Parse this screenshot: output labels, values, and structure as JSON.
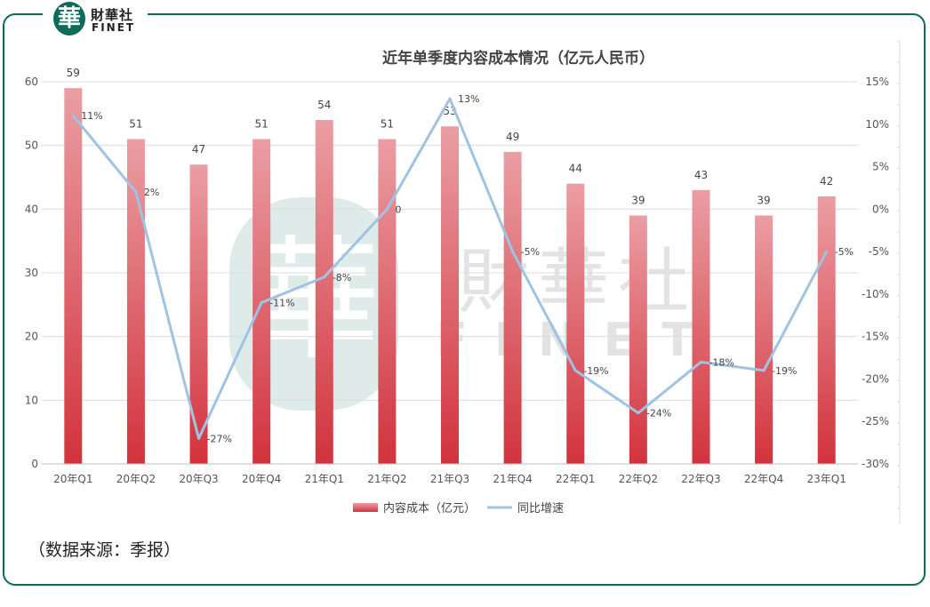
{
  "logo": {
    "mark": "華",
    "cn": "財華社",
    "en": "FINET"
  },
  "watermark": {
    "mark": "華",
    "cn": "財華社",
    "en": "FINET"
  },
  "source": "（数据来源：季报）",
  "colors": {
    "bar_top": "#ea9ea3",
    "bar_bottom": "#d2333d",
    "line": "#9ec3e3",
    "frame": "#0d6b5a"
  },
  "chart_data": {
    "type": "bar",
    "title": "近年单季度内容成本情况（亿元人民币）",
    "categories": [
      "20年Q1",
      "20年Q2",
      "20年Q3",
      "20年Q4",
      "21年Q1",
      "21年Q2",
      "21年Q3",
      "21年Q4",
      "22年Q1",
      "22年Q2",
      "22年Q3",
      "22年Q4",
      "23年Q1"
    ],
    "series": [
      {
        "name": "内容成本（亿元）",
        "type": "bar",
        "axis": "left",
        "values": [
          59,
          51,
          47,
          51,
          54,
          51,
          53,
          49,
          44,
          39,
          43,
          39,
          42
        ]
      },
      {
        "name": "同比增速",
        "type": "line",
        "axis": "right",
        "values": [
          11,
          2,
          -27,
          -11,
          -8,
          0,
          13,
          -5,
          -19,
          -24,
          -18,
          -19,
          -5
        ],
        "labels": [
          "11%",
          "2%",
          "-27%",
          "-11%",
          "-8%",
          "0",
          "13%",
          "-5%",
          "-19%",
          "-24%",
          "-18%",
          "-19%",
          "-5%"
        ]
      }
    ],
    "y_left": {
      "min": 0,
      "max": 60,
      "ticks": [
        "0",
        "10",
        "20",
        "30",
        "40",
        "50",
        "60"
      ]
    },
    "y_right": {
      "min": -30,
      "max": 15,
      "ticks": [
        "-30%",
        "-25%",
        "-20%",
        "-15%",
        "-10%",
        "-5%",
        "0%",
        "5%",
        "10%",
        "15%"
      ]
    },
    "legend_position": "bottom",
    "grid": true
  }
}
